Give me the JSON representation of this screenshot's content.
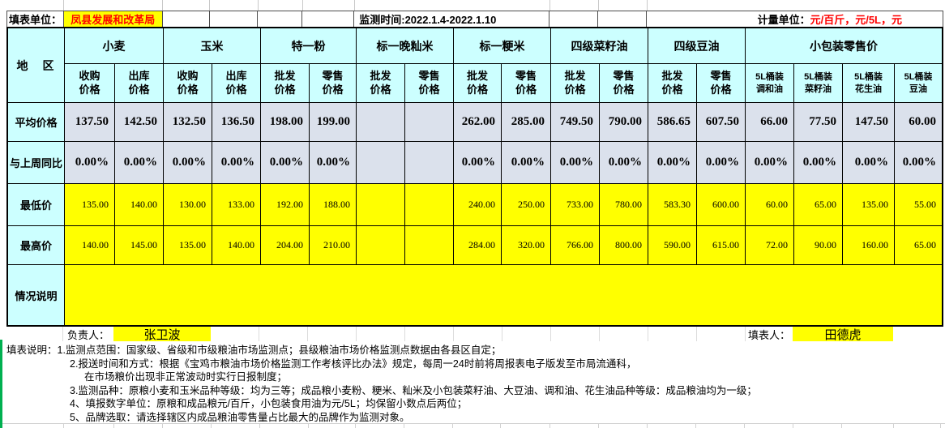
{
  "colors": {
    "header_cyan": "#CCFFFF",
    "data_blue_gray": "#DBE1EC",
    "highlight_yellow": "#FFFF00",
    "text_red": "#FF0000",
    "green_edge": "#00B050"
  },
  "title_bar": {
    "unit_label": "填表单位：",
    "unit_value": "凤县发展和改革局",
    "time_text": "监测时间:2022.1.4-2022.1.10",
    "measure_label": "计量单位：",
    "measure_value": "元/百斤，元/5L，元"
  },
  "table": {
    "corner_label": "地　区",
    "groups": [
      {
        "label": "小麦",
        "subs": [
          "收购\n价格",
          "出库\n价格"
        ]
      },
      {
        "label": "玉米",
        "subs": [
          "收购\n价格",
          "出库\n价格"
        ]
      },
      {
        "label": "特一粉",
        "subs": [
          "批发\n价格",
          "零售\n价格"
        ]
      },
      {
        "label": "标一晚籼米",
        "subs": [
          "批发\n价格",
          "零售\n价格"
        ]
      },
      {
        "label": "标一粳米",
        "subs": [
          "批发\n价格",
          "零售\n价格"
        ]
      },
      {
        "label": "四级菜籽油",
        "subs": [
          "批发\n价格",
          "零售\n价格"
        ]
      },
      {
        "label": "四级豆油",
        "subs": [
          "批发\n价格",
          "零售\n价格"
        ]
      },
      {
        "label": "小包装零售价",
        "subs": [
          "5L桶装\n调和油",
          "5L桶装\n菜籽油",
          "5L桶装\n花生油",
          "5L桶装\n豆油"
        ]
      }
    ],
    "rows": [
      {
        "key": "avg",
        "label": "平均价格",
        "values": [
          "137.50",
          "142.50",
          "132.50",
          "136.50",
          "198.00",
          "199.00",
          "",
          "",
          "262.00",
          "285.00",
          "749.50",
          "790.00",
          "586.65",
          "607.50",
          "66.00",
          "77.50",
          "147.50",
          "60.00"
        ]
      },
      {
        "key": "wow",
        "label": "与上周同比",
        "values": [
          "0.00%",
          "0.00%",
          "0.00%",
          "0.00%",
          "0.00%",
          "0.00%",
          "",
          "",
          "0.00%",
          "0.00%",
          "0.00%",
          "0.00%",
          "0.00%",
          "0.00%",
          "0.00%",
          "0.00%",
          "0.00%",
          "0.00%"
        ]
      },
      {
        "key": "min",
        "label": "最低价",
        "values": [
          "135.00",
          "140.00",
          "130.00",
          "133.00",
          "192.00",
          "188.00",
          "",
          "",
          "240.00",
          "250.00",
          "733.00",
          "780.00",
          "583.30",
          "600.00",
          "60.00",
          "65.00",
          "135.00",
          "55.00"
        ]
      },
      {
        "key": "max",
        "label": "最高价",
        "values": [
          "140.00",
          "145.00",
          "135.00",
          "140.00",
          "204.00",
          "210.00",
          "",
          "",
          "284.00",
          "320.00",
          "766.00",
          "800.00",
          "590.00",
          "615.00",
          "72.00",
          "90.00",
          "160.00",
          "65.00"
        ]
      },
      {
        "key": "remark",
        "label": "情况说明",
        "merged": true,
        "values": [
          ""
        ]
      }
    ]
  },
  "sign_row": {
    "responsible_label": "负责人：",
    "responsible_name": "张卫波",
    "filler_label": "填表人：",
    "filler_name": "田德虎"
  },
  "notes": {
    "lines": [
      "填表说明：1.监测点范围：国家级、省级和市级粮油市场监测点；县级粮油市场价格监测点数据由各县区自定；",
      "2.报送时间和方式：根据《宝鸡市粮油市场价格监测工作考核评比办法》规定，每周一24时前将周报表电子版发至市局流通科，",
      "在市场粮价出现非正常波动时实行日报制度；",
      "3.监测品种：原粮小麦和玉米品种等级：均为三等；成品粮小麦粉、粳米、籼米及小包装菜籽油、大豆油、调和油、花生油品种等级：成品粮油均为一级；",
      "4、填报数字单位：原粮和成品粮元/百斤，小包装食用油为元/5L；均保留小数点后两位；",
      "5、品牌选取：请选择辖区内成品粮油零售量占比最大的品牌作为监测对象。"
    ]
  }
}
